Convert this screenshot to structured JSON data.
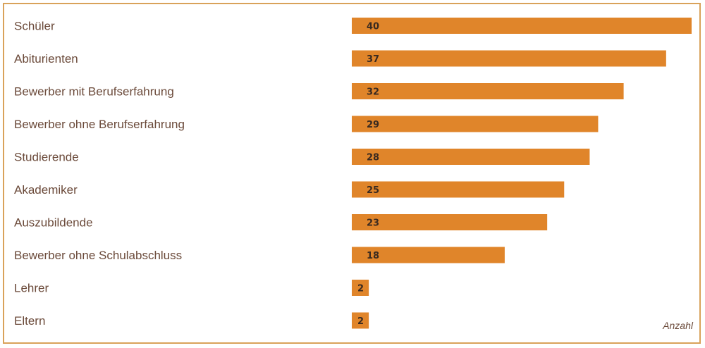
{
  "chart_data": {
    "type": "bar",
    "orientation": "horizontal",
    "categories": [
      "Schüler",
      "Abiturienten",
      "Bewerber mit Berufserfahrung",
      "Bewerber ohne Berufserfahrung",
      "Studierende",
      "Akademiker",
      "Auszubildende",
      "Bewerber ohne Schulabschluss",
      "Lehrer",
      "Eltern"
    ],
    "values": [
      40,
      37,
      32,
      29,
      28,
      25,
      23,
      18,
      2,
      2
    ],
    "xlabel": "Anzahl",
    "ylabel": "",
    "xlim": [
      0,
      40
    ],
    "grid": false,
    "legend": "none"
  },
  "colors": {
    "bar": "#e0852a",
    "frame": "#d9a25a",
    "label": "#6b4a3a"
  }
}
